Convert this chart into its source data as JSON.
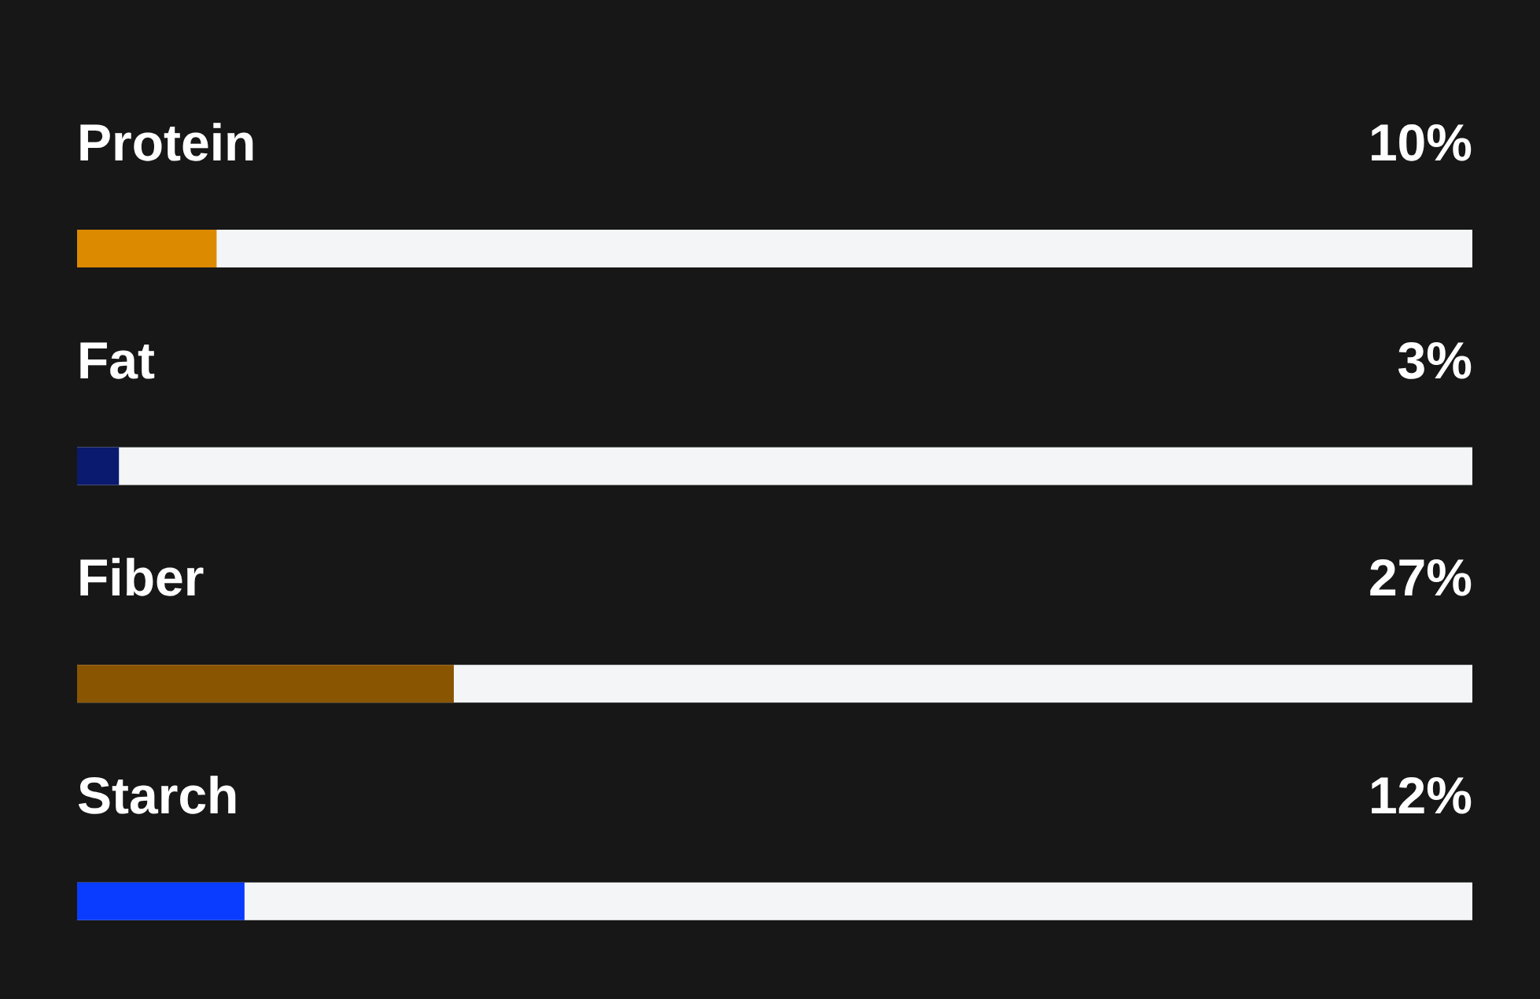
{
  "chart_data": {
    "type": "bar",
    "orientation": "horizontal",
    "categories": [
      "Protein",
      "Fat",
      "Fiber",
      "Starch"
    ],
    "values": [
      10,
      3,
      27,
      12
    ],
    "colors": [
      "#dc8a00",
      "#0a1a6e",
      "#8a5500",
      "#0a3cff"
    ],
    "value_labels": [
      "10%",
      "3%",
      "27%",
      "12%"
    ],
    "xlim": [
      0,
      100
    ],
    "tick_labels": "y"
  }
}
